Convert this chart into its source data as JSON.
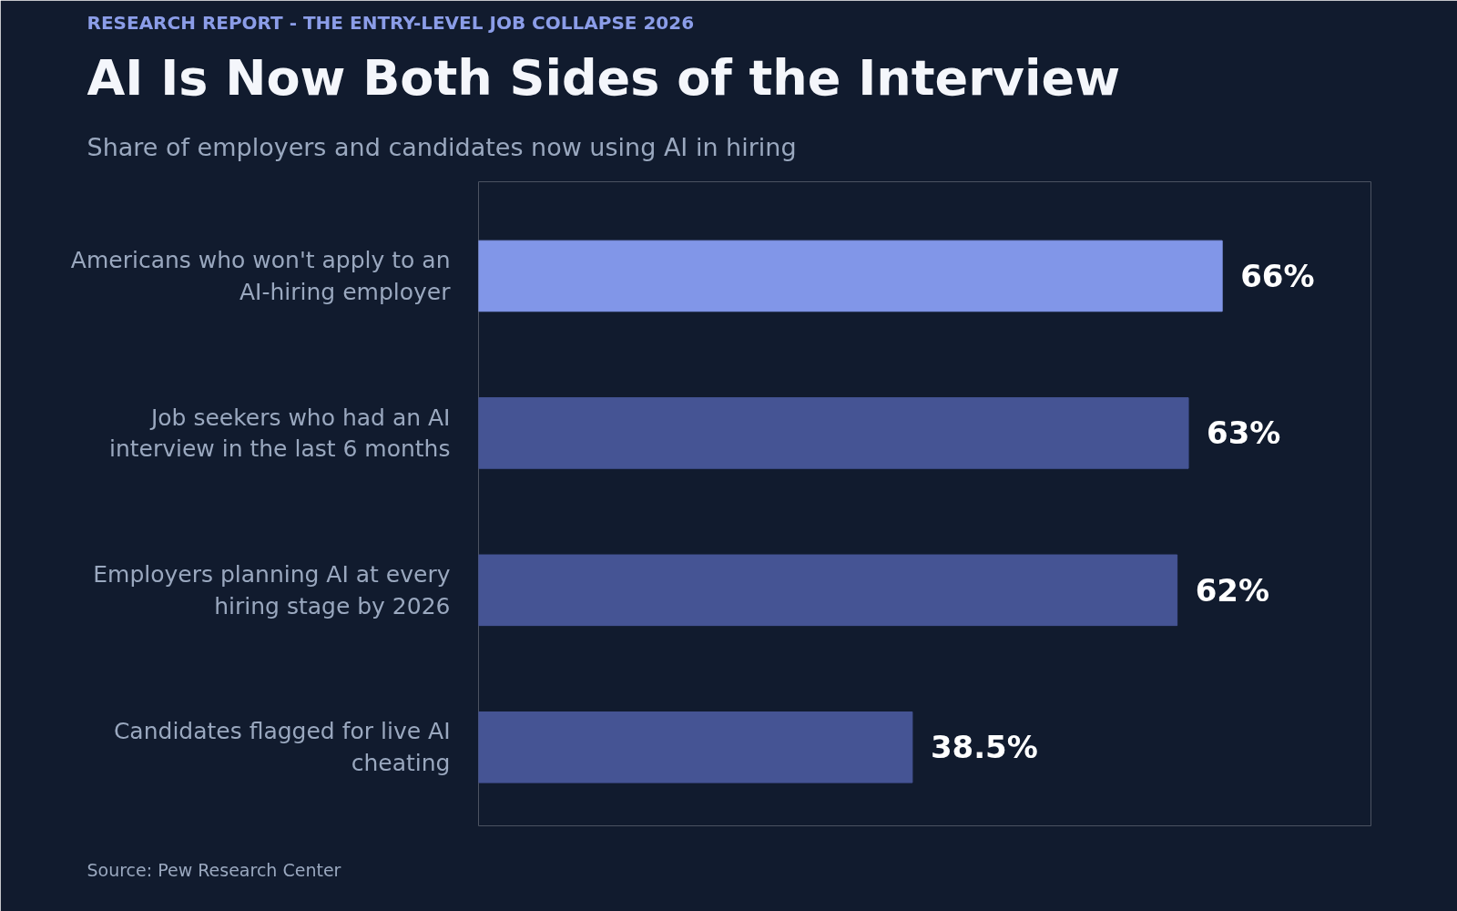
{
  "chart_data": {
    "type": "bar",
    "orientation": "horizontal",
    "title": "AI Is Now Both Sides of the Interview",
    "subtitle": "Share of employers and candidates now using AI in hiring",
    "annotations": [
      "RESEARCH REPORT - THE ENTRY-LEVEL JOB COLLAPSE 2026",
      "Source: Pew Research Center"
    ],
    "categories": [
      "Americans who won't apply to an AI-hiring employer",
      "Job seekers who had an AI interview in the last 6 months",
      "Employers planning AI at every hiring stage by 2026",
      "Candidates flagged for live AI cheating"
    ],
    "values": [
      66,
      63,
      62,
      38.5
    ],
    "colors": [
      "#8196e8",
      "#455494",
      "#455494",
      "#455494"
    ],
    "value_labels": [
      "66%",
      "63%",
      "62%",
      "38.5%"
    ],
    "grid": false
  }
}
